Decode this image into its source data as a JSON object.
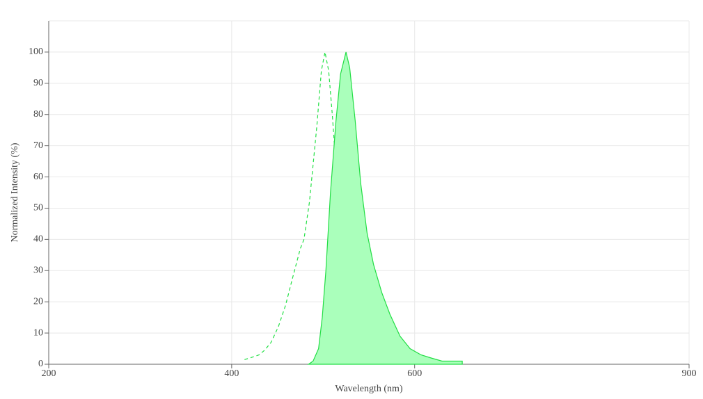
{
  "chart_data": {
    "type": "line",
    "xlabel": "Wavelength (nm)",
    "ylabel": "Normalized Intensity (%)",
    "xlim": [
      200,
      900
    ],
    "xticks": [
      200,
      400,
      600,
      900
    ],
    "ylim": [
      0,
      110
    ],
    "yticks": [
      0,
      10,
      20,
      30,
      40,
      50,
      60,
      70,
      80,
      90,
      100
    ],
    "grid": true,
    "series": [
      {
        "color": "#22e044",
        "line_style": "dashed",
        "fill": false,
        "x": [
          414,
          420,
          430,
          436,
          443,
          451,
          459,
          466,
          475,
          479,
          485,
          493,
          498,
          502,
          506,
          510,
          516,
          519,
          523,
          527,
          533,
          538,
          546
        ],
        "values": [
          1.5,
          2,
          3,
          4.5,
          7,
          12,
          19,
          27,
          37,
          40,
          52,
          76,
          94,
          100,
          94,
          80,
          55,
          38,
          22,
          11,
          4,
          1.5,
          0
        ]
      },
      {
        "color": "#22dd44",
        "line_style": "solid",
        "fill": true,
        "fill_color": "#aaffbb",
        "x": [
          484,
          489,
          495,
          499,
          503,
          508,
          514,
          519,
          525,
          529,
          535,
          541,
          548,
          555,
          564,
          573,
          584,
          595,
          607,
          618,
          630,
          652
        ],
        "values": [
          0,
          1,
          5,
          15,
          30,
          55,
          78,
          93,
          100,
          95,
          78,
          58,
          42,
          32,
          23,
          16,
          9,
          5,
          3,
          2,
          1,
          1
        ]
      }
    ]
  }
}
